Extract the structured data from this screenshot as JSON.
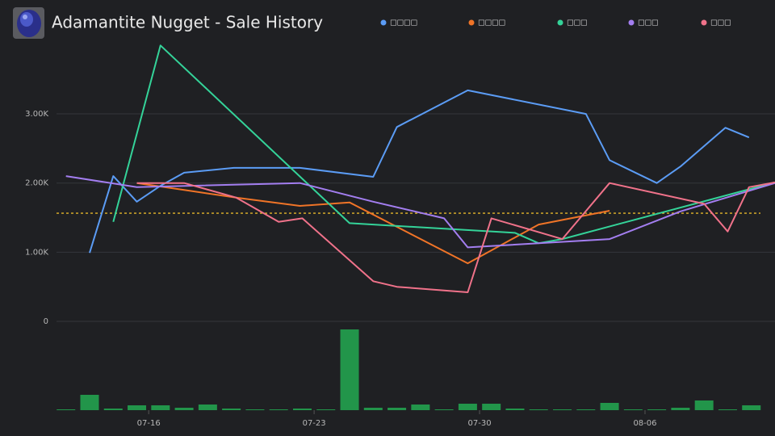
{
  "chart_data": {
    "type": "line",
    "title": "Adamantite Nugget - Sale History",
    "xlim": [
      12.1,
      42.5
    ],
    "xticks": [
      {
        "value": 16,
        "label": "07-16"
      },
      {
        "value": 23,
        "label": "07-23"
      },
      {
        "value": 30,
        "label": "07-30"
      },
      {
        "value": 37,
        "label": "08-06"
      }
    ],
    "ylim": [
      0,
      4180
    ],
    "yticks": [
      0,
      {
        "value": 1000,
        "label": "1.00K"
      },
      {
        "value": 2000,
        "label": "2.00K"
      },
      {
        "value": 3000,
        "label": "3.00K"
      }
    ],
    "grid": true,
    "average_line": {
      "value": 1564,
      "color": "#e3b52a"
    },
    "series": [
      {
        "name": "□□□□",
        "color": "#5b9cf5",
        "x": [
          13.5,
          14.5,
          15.5,
          16.5,
          17.5,
          19.6,
          22.4,
          25.5,
          26.5,
          29.5,
          34.5,
          35.5,
          37.5,
          38.5,
          40.4,
          41.4
        ],
        "values": [
          990,
          2100,
          1730,
          1960,
          2150,
          2220,
          2220,
          2090,
          2810,
          3340,
          3000,
          2330,
          2000,
          2240,
          2800,
          2660
        ]
      },
      {
        "name": "□□□□",
        "color": "#f07427",
        "x": [
          15.5,
          17.5,
          19.7,
          22.4,
          24.5,
          29.5,
          32.5,
          35.5
        ],
        "values": [
          2000,
          1900,
          1790,
          1670,
          1720,
          840,
          1400,
          1600
        ]
      },
      {
        "name": "□□□",
        "color": "#34d399",
        "x": [
          14.5,
          16.5,
          24.5,
          31.5,
          32.5,
          33.5,
          42.5
        ],
        "values": [
          1440,
          3990,
          1420,
          1280,
          1130,
          1190,
          2010
        ]
      },
      {
        "name": "□□□",
        "color": "#a37ef0",
        "x": [
          12.5,
          15.5,
          22.4,
          25.5,
          28.5,
          29.5,
          35.5,
          38.5,
          42.5
        ],
        "values": [
          2100,
          1940,
          2000,
          1730,
          1490,
          1070,
          1190,
          1590,
          2000
        ]
      },
      {
        "name": "□□□",
        "color": "#f0728a",
        "x": [
          15.5,
          17.5,
          19.7,
          21.5,
          22.5,
          25.5,
          26.5,
          29.5,
          30.5,
          33.5,
          35.5,
          39.5,
          40.5,
          41.4,
          42.5
        ],
        "values": [
          2000,
          2000,
          1790,
          1440,
          1490,
          580,
          500,
          420,
          1490,
          1190,
          2000,
          1700,
          1300,
          1940,
          2010
        ]
      }
    ],
    "volume": {
      "color": "#22954a",
      "x": [
        12.5,
        13.5,
        14.5,
        15.5,
        16.5,
        17.5,
        18.5,
        19.5,
        20.5,
        21.5,
        22.5,
        23.5,
        24.5,
        25.5,
        26.5,
        27.5,
        28.5,
        29.5,
        30.5,
        31.5,
        32.5,
        33.5,
        34.5,
        35.5,
        36.5,
        37.5,
        38.5,
        39.5,
        40.5,
        41.5
      ],
      "values": [
        1,
        19,
        2,
        6,
        6,
        3,
        7,
        2,
        1,
        1,
        2,
        0,
        100,
        3,
        3,
        7,
        1,
        8,
        8,
        2,
        1,
        1,
        1,
        9,
        0,
        1,
        3,
        12,
        1,
        6
      ]
    }
  }
}
